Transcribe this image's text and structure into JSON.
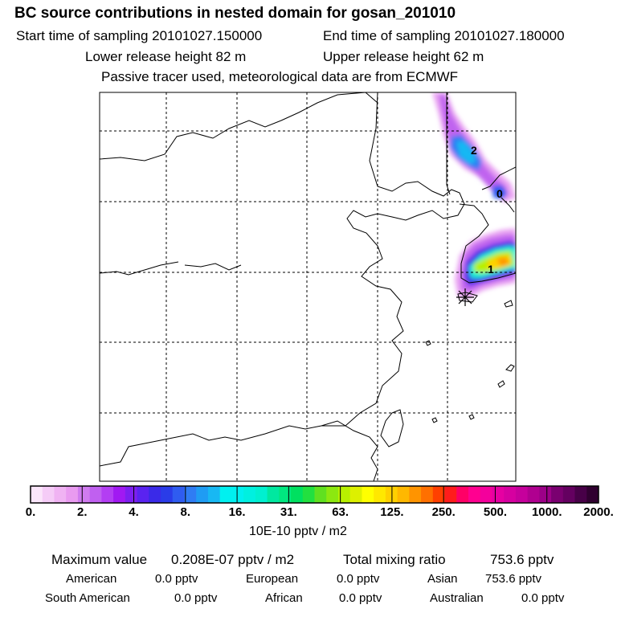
{
  "title": "BC  source contributions in nested domain for gosan_201010",
  "sampling": {
    "start": "Start time of sampling 20101027.150000",
    "end": "End time of sampling 20101027.180000"
  },
  "release": {
    "lower": "Lower release height   82 m",
    "upper": "Upper release height   62 m"
  },
  "note": "Passive tracer used, meteorological data are from ECMWF",
  "chart_data": {
    "type": "heatmap",
    "title": "BC  source contributions in nested domain for gosan_201010",
    "contour_labels": [
      "2",
      "0",
      "1"
    ],
    "colorbar": {
      "ticks": [
        "0.",
        "2.",
        "4.",
        "8.",
        "16.",
        "31.",
        "63.",
        "125.",
        "250.",
        "500.",
        "1000.",
        "2000."
      ],
      "unit": "10E-10 pptv / m2",
      "colors": [
        "#fbe6fb",
        "#f5ccf7",
        "#f0b3f3",
        "#e99bf0",
        "#d07cef",
        "#c060f0",
        "#b33ef3",
        "#a119f2",
        "#7d1ff0",
        "#5a23f0",
        "#3a2ae8",
        "#2a3ce8",
        "#2f5cf0",
        "#2f7cf3",
        "#1f9cf3",
        "#18b8f3",
        "#00f0f0",
        "#00f0f0",
        "#00f0e0",
        "#00f0d0",
        "#00e8a0",
        "#00e880",
        "#00e060",
        "#22e040",
        "#60e020",
        "#8ce810",
        "#b8f000",
        "#ddf000",
        "#ffff00",
        "#ffe800",
        "#ffd000",
        "#ffb800",
        "#ff9400",
        "#ff7000",
        "#ff4000",
        "#ff1c1c",
        "#ff0066",
        "#ff0090",
        "#f4009c",
        "#e600a2",
        "#d600a0",
        "#c6009c",
        "#b00090",
        "#9c0088",
        "#7a0070",
        "#640060",
        "#480048",
        "#300030"
      ]
    },
    "plume_values_approx": {
      "peak_near_receptor": "125.-250.",
      "northern_band": "4.-16."
    }
  },
  "stats": {
    "max_label": "Maximum value",
    "max_value": "0.208E-07 pptv / m2",
    "total_label": "Total mixing ratio",
    "total_value": "753.6 pptv"
  },
  "contributions": [
    {
      "name": "American",
      "value": "0.0 pptv"
    },
    {
      "name": "European",
      "value": "0.0 pptv"
    },
    {
      "name": "Asian",
      "value": "753.6 pptv"
    },
    {
      "name": "South American",
      "value": "0.0 pptv"
    },
    {
      "name": "African",
      "value": "0.0 pptv"
    },
    {
      "name": "Australian",
      "value": "0.0 pptv"
    }
  ]
}
